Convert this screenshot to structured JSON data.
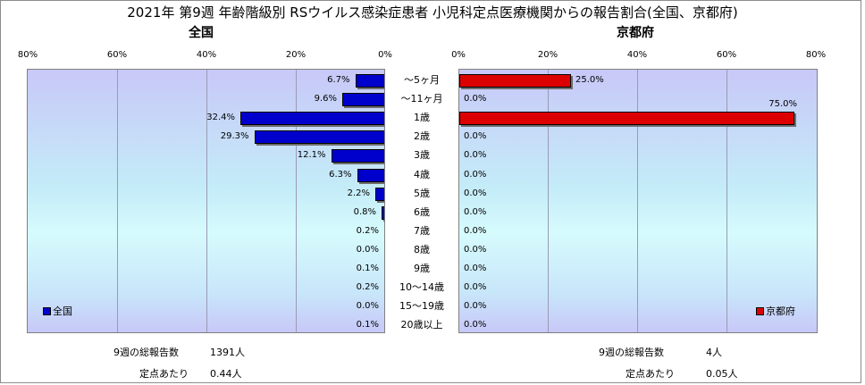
{
  "chart_data": {
    "type": "bar",
    "title": "2021年 第9週 年齢階級別 RSウイルス感染症患者 小児科定点医療機関からの報告割合(全国、京都府)",
    "categories": [
      "～5ヶ月",
      "～11ヶ月",
      "1歳",
      "2歳",
      "3歳",
      "4歳",
      "5歳",
      "6歳",
      "7歳",
      "8歳",
      "9歳",
      "10～14歳",
      "15～19歳",
      "20歳以上"
    ],
    "tick_labels": [
      "0%",
      "20%",
      "40%",
      "60%",
      "80%"
    ],
    "xlim": [
      0,
      80
    ],
    "series": [
      {
        "name": "全国",
        "panel_title": "全国",
        "color": "#0000cc",
        "values": [
          6.7,
          9.6,
          32.4,
          29.3,
          12.1,
          6.3,
          2.2,
          0.8,
          0.2,
          0.0,
          0.1,
          0.2,
          0.0,
          0.1
        ],
        "labels": [
          "6.7%",
          "9.6%",
          "32.4%",
          "29.3%",
          "12.1%",
          "6.3%",
          "2.2%",
          "0.8%",
          "0.2%",
          "0.0%",
          "0.1%",
          "0.2%",
          "0.0%",
          "0.1%"
        ]
      },
      {
        "name": "京都府",
        "panel_title": "京都府",
        "color": "#dd0000",
        "values": [
          25.0,
          0.0,
          75.0,
          0.0,
          0.0,
          0.0,
          0.0,
          0.0,
          0.0,
          0.0,
          0.0,
          0.0,
          0.0,
          0.0
        ],
        "labels": [
          "25.0%",
          "0.0%",
          "75.0%",
          "0.0%",
          "0.0%",
          "0.0%",
          "0.0%",
          "0.0%",
          "0.0%",
          "0.0%",
          "0.0%",
          "0.0%",
          "0.0%",
          "0.0%"
        ]
      }
    ],
    "legend": [
      "bottom-left",
      "bottom-right"
    ],
    "grid": true
  },
  "footer": {
    "national": {
      "total_label": "9週の総報告数",
      "total_value": "1391人",
      "per_label": "定点あたり",
      "per_value": "0.44人"
    },
    "kyoto": {
      "total_label": "9週の総報告数",
      "total_value": "4人",
      "per_label": "定点あたり",
      "per_value": "0.05人"
    }
  }
}
